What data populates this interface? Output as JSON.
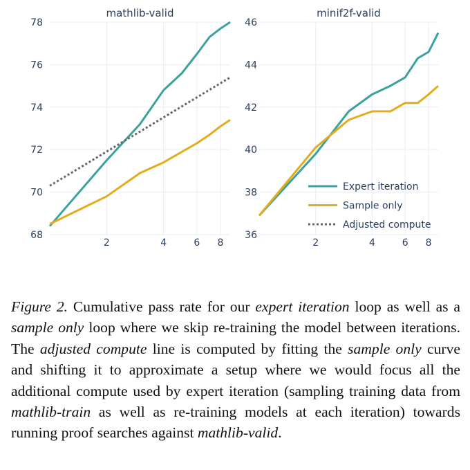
{
  "chart_data": [
    {
      "type": "line",
      "title": "mathlib-valid",
      "xscale": "log",
      "xlim": [
        1,
        9
      ],
      "ylim": [
        68,
        78
      ],
      "yticks": [
        68,
        70,
        72,
        74,
        76,
        78
      ],
      "xticks": [
        2,
        4,
        6,
        8
      ],
      "grid": true,
      "series": [
        {
          "name": "Expert iteration",
          "color": "#3aa19c",
          "dash": "solid",
          "x": [
            1,
            2,
            3,
            4,
            5,
            6,
            7,
            8,
            9
          ],
          "y": [
            68.4,
            71.5,
            73.2,
            74.8,
            75.6,
            76.5,
            77.3,
            77.7,
            78.0
          ]
        },
        {
          "name": "Sample only",
          "color": "#e3ac1f",
          "dash": "solid",
          "x": [
            1,
            2,
            3,
            4,
            5,
            6,
            7,
            8,
            9
          ],
          "y": [
            68.5,
            69.8,
            70.9,
            71.4,
            71.9,
            72.3,
            72.7,
            73.1,
            73.4
          ]
        },
        {
          "name": "Adjusted compute",
          "color": "#666666",
          "dash": "dot",
          "x": [
            1,
            9
          ],
          "y": [
            70.3,
            75.4
          ]
        }
      ]
    },
    {
      "type": "line",
      "title": "minif2f-valid",
      "xscale": "log",
      "xlim": [
        1,
        9
      ],
      "ylim": [
        36,
        46
      ],
      "yticks": [
        36,
        38,
        40,
        42,
        44,
        46
      ],
      "xticks": [
        2,
        4,
        6,
        8
      ],
      "grid": true,
      "legend": "lower-right",
      "series": [
        {
          "name": "Expert iteration",
          "color": "#3aa19c",
          "dash": "solid",
          "x": [
            1,
            2,
            3,
            4,
            5,
            6,
            7,
            8,
            9
          ],
          "y": [
            36.9,
            39.8,
            41.8,
            42.6,
            43.0,
            43.4,
            44.3,
            44.6,
            45.5
          ]
        },
        {
          "name": "Sample only",
          "color": "#e3ac1f",
          "dash": "solid",
          "x": [
            1,
            2,
            3,
            4,
            5,
            6,
            7,
            8,
            9
          ],
          "y": [
            36.9,
            40.1,
            41.4,
            41.8,
            41.8,
            42.2,
            42.2,
            42.6,
            43.0
          ]
        }
      ]
    }
  ],
  "legend": [
    {
      "name": "Expert iteration",
      "color": "#3aa19c",
      "dash": "solid"
    },
    {
      "name": "Sample only",
      "color": "#e3ac1f",
      "dash": "solid"
    },
    {
      "name": "Adjusted compute",
      "color": "#666666",
      "dash": "dot"
    }
  ],
  "caption": {
    "label": "Figure 2.",
    "t1": " Cumulative pass rate for our ",
    "i1": "expert iteration",
    "t2": " loop as well as a ",
    "i2": "sample only",
    "t3": " loop where we skip re-training the model between iterations. The ",
    "i3": "adjusted compute",
    "t4": " line is computed by fitting the ",
    "i4": "sample only",
    "t5": " curve and shifting it to approximate a setup where we would focus all the additional compute used by expert iteration (sampling training data from ",
    "i5": "mathlib-train",
    "t6": " as well as re-training models at each iteration) towards running proof searches against ",
    "i6": "mathlib-valid",
    "t7": "."
  }
}
